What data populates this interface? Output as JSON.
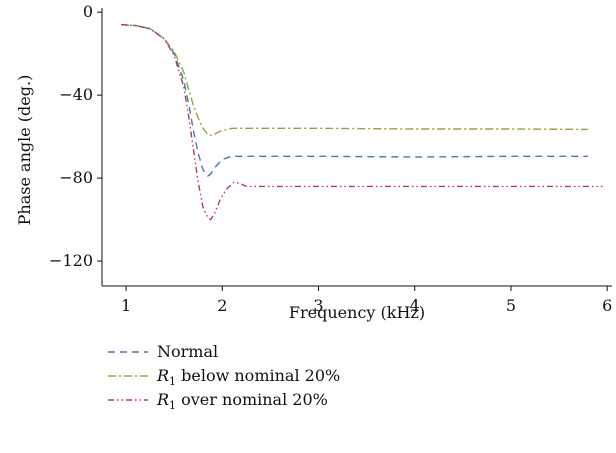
{
  "chart_data": {
    "type": "line",
    "title": "",
    "xlabel": "Frequency (kHz)",
    "ylabel": "Phase angle (deg.)",
    "xlim": [
      0.75,
      6.05
    ],
    "ylim": [
      -132,
      2
    ],
    "xticks": [
      1,
      2,
      3,
      4,
      5,
      6
    ],
    "yticks": [
      0,
      -40,
      -80,
      -120
    ],
    "xtick_labels": [
      "1",
      "2",
      "3",
      "4",
      "5",
      "6"
    ],
    "ytick_labels": [
      "0",
      "−40",
      "−80",
      "−120"
    ],
    "grid": false,
    "legend_position": "bottom-left, below plot",
    "series": [
      {
        "name": "Normal",
        "label_parts": {
          "prefix": "",
          "sub": "",
          "rest": "Normal"
        },
        "color": "#4a79b0",
        "dash": "7,5",
        "x": [
          0.95,
          1.1,
          1.25,
          1.4,
          1.5,
          1.6,
          1.65,
          1.7,
          1.75,
          1.8,
          1.85,
          1.88,
          1.92,
          2.0,
          2.1,
          2.2,
          3.0,
          4.0,
          5.0,
          5.8
        ],
        "y": [
          -6,
          -6.5,
          -8,
          -13,
          -20,
          -33,
          -44,
          -57,
          -68,
          -76,
          -79,
          -78,
          -75,
          -71,
          -69.5,
          -69.5,
          -69.5,
          -69.8,
          -69.5,
          -69.5
        ]
      },
      {
        "name": "R1 below nominal 20%",
        "label_parts": {
          "prefix": "R",
          "sub": "1",
          "rest": " below nominal 20%"
        },
        "color": "#8aaa3c",
        "dash": "8,3,2,3",
        "x": [
          0.95,
          1.1,
          1.25,
          1.4,
          1.5,
          1.6,
          1.65,
          1.7,
          1.75,
          1.8,
          1.85,
          1.9,
          1.95,
          2.0,
          2.1,
          2.2,
          3.0,
          4.0,
          5.0,
          5.8
        ],
        "y": [
          -6,
          -6.5,
          -8,
          -13,
          -19,
          -29,
          -37,
          -45,
          -51,
          -56,
          -59,
          -59.5,
          -58,
          -57,
          -56,
          -56,
          -56,
          -56.3,
          -56.3,
          -56.5
        ]
      },
      {
        "name": "R1 over nominal 20%",
        "label_parts": {
          "prefix": "R",
          "sub": "1",
          "rest": " over nominal 20%"
        },
        "color": "#b5395a",
        "dash": "6,3,1.5,3,1.5,3",
        "x": [
          0.95,
          1.1,
          1.25,
          1.4,
          1.5,
          1.6,
          1.65,
          1.7,
          1.75,
          1.8,
          1.85,
          1.88,
          1.92,
          1.98,
          2.05,
          2.12,
          2.18,
          2.25,
          3.0,
          4.0,
          5.0,
          5.95
        ],
        "y": [
          -6,
          -6.5,
          -8,
          -13,
          -21,
          -36,
          -50,
          -66,
          -82,
          -94,
          -99,
          -100,
          -97,
          -90,
          -85,
          -82,
          -82.5,
          -84,
          -84,
          -84,
          -84,
          -84
        ]
      }
    ]
  }
}
